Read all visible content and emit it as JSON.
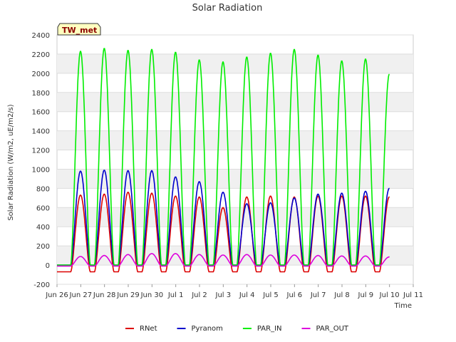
{
  "chart_data": {
    "type": "line",
    "title": "Solar Radiation",
    "xlabel": "Time",
    "ylabel": "Solar Radiation (W/m2, uE/m2/s)",
    "badge": "TW_met",
    "ylim": [
      -200,
      2400
    ],
    "xlim": [
      0,
      15
    ],
    "yticks": [
      -200,
      0,
      200,
      400,
      600,
      800,
      1000,
      1200,
      1400,
      1600,
      1800,
      2000,
      2200,
      2400
    ],
    "xticks": [
      {
        "x": 0,
        "label": "Jun 26"
      },
      {
        "x": 1,
        "label": "Jun 27"
      },
      {
        "x": 2,
        "label": "Jun 28"
      },
      {
        "x": 3,
        "label": "Jun 29"
      },
      {
        "x": 4,
        "label": "Jun 30"
      },
      {
        "x": 5,
        "label": "Jul 1"
      },
      {
        "x": 6,
        "label": "Jul 2"
      },
      {
        "x": 7,
        "label": "Jul 3"
      },
      {
        "x": 8,
        "label": "Jul 4"
      },
      {
        "x": 9,
        "label": "Jul 5"
      },
      {
        "x": 10,
        "label": "Jul 6"
      },
      {
        "x": 11,
        "label": "Jul 7"
      },
      {
        "x": 12,
        "label": "Jul 8"
      },
      {
        "x": 13,
        "label": "Jul 9"
      },
      {
        "x": 14,
        "label": "Jul 10"
      },
      {
        "x": 15,
        "label": "Jul 11"
      }
    ],
    "grid": true,
    "legend_position": "bottom",
    "day_start": 0.58,
    "day_end": 1.4,
    "days": [
      "Jun 26",
      "Jun 27",
      "Jun 28",
      "Jun 29",
      "Jun 30",
      "Jul 1",
      "Jul 2",
      "Jul 3",
      "Jul 4",
      "Jul 5",
      "Jul 6",
      "Jul 7",
      "Jul 8",
      "Jul 9"
    ],
    "series": [
      {
        "name": "RNet",
        "color": "#dd0000",
        "night": -70,
        "peaks": [
          730,
          740,
          760,
          750,
          720,
          710,
          600,
          710,
          720,
          710,
          720,
          720,
          720,
          710
        ]
      },
      {
        "name": "Pyranom",
        "color": "#0000cc",
        "night": 0,
        "peaks": [
          980,
          990,
          985,
          985,
          920,
          870,
          760,
          640,
          650,
          700,
          740,
          750,
          770,
          800
        ]
      },
      {
        "name": "PAR_IN",
        "color": "#00ee00",
        "night": 0,
        "peaks": [
          2230,
          2260,
          2240,
          2250,
          2220,
          2140,
          2120,
          2170,
          2210,
          2250,
          2190,
          2130,
          2150,
          1990
        ]
      },
      {
        "name": "PAR_OUT",
        "color": "#dd00dd",
        "night": -10,
        "peaks": [
          90,
          100,
          110,
          120,
          120,
          110,
          105,
          110,
          105,
          105,
          100,
          95,
          95,
          85
        ]
      }
    ]
  }
}
